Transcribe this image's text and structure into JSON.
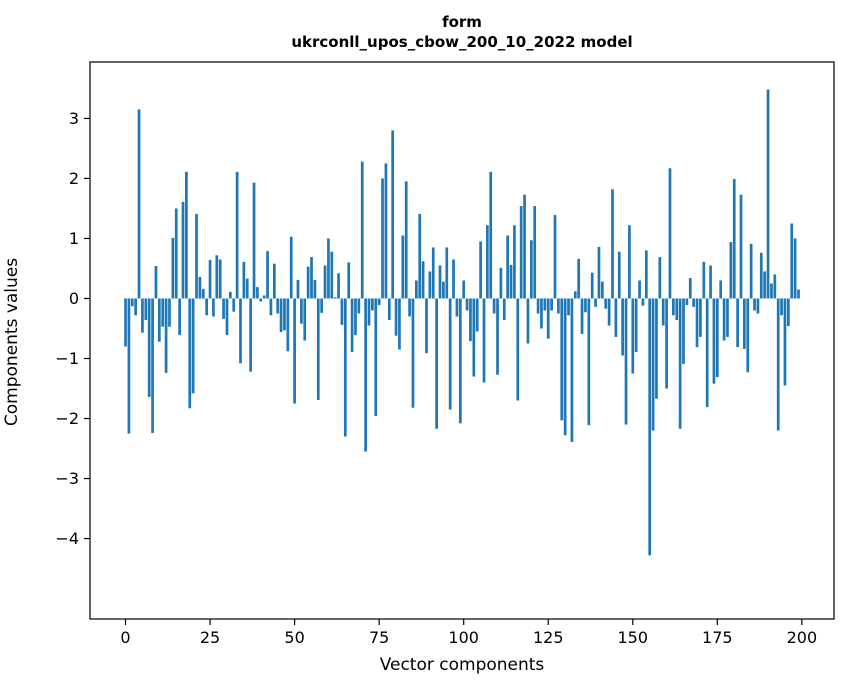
{
  "title": {
    "line1": "form",
    "line2": "ukrconll_upos_cbow_200_10_2022 model"
  },
  "chart_data": {
    "type": "bar",
    "title": "form\nukrconll_upos_cbow_200_10_2022 model",
    "xlabel": "Vector components",
    "ylabel": "Components values",
    "bar_color": "#1f77b4",
    "axis_color": "#000000",
    "background_color": "#ffffff",
    "grid": false,
    "legend": "none",
    "xlim": [
      -10.5,
      209.5
    ],
    "ylim": [
      -5.34,
      3.94
    ],
    "xticks": [
      0,
      25,
      50,
      75,
      100,
      125,
      150,
      175,
      200
    ],
    "xtick_labels": [
      "0",
      "25",
      "50",
      "75",
      "100",
      "125",
      "150",
      "175",
      "200"
    ],
    "yticks": [
      3,
      2,
      1,
      0,
      -1,
      -2,
      -3,
      -4
    ],
    "ytick_labels": [
      "3",
      "2",
      "1",
      "0",
      "−1",
      "−2",
      "−3",
      "−4"
    ],
    "x_start": 0,
    "values": [
      -0.8,
      -2.25,
      -0.13,
      -0.28,
      3.15,
      -0.57,
      -0.36,
      -1.64,
      -2.24,
      0.54,
      -0.72,
      -0.47,
      -1.24,
      -0.47,
      1.01,
      1.5,
      -0.61,
      1.61,
      2.11,
      -1.83,
      -1.58,
      1.41,
      0.36,
      0.16,
      -0.28,
      0.64,
      -0.3,
      0.72,
      0.65,
      -0.34,
      -0.61,
      0.11,
      -0.22,
      2.11,
      -1.08,
      0.61,
      0.33,
      -1.22,
      1.93,
      0.19,
      -0.05,
      0.05,
      0.79,
      -0.28,
      0.58,
      -0.25,
      -0.56,
      -0.53,
      -0.88,
      1.03,
      -1.75,
      0.31,
      -0.42,
      -0.7,
      0.53,
      0.69,
      0.31,
      -1.69,
      -0.24,
      0.55,
      1.0,
      0.78,
      0.02,
      0.42,
      -0.44,
      -2.3,
      0.6,
      -0.89,
      -0.61,
      -0.25,
      2.28,
      -2.55,
      -0.45,
      -0.2,
      -1.96,
      -0.11,
      2.0,
      2.25,
      -0.36,
      2.8,
      -0.62,
      -0.85,
      1.05,
      1.95,
      -0.3,
      -1.82,
      0.3,
      1.41,
      0.62,
      -0.91,
      0.45,
      0.85,
      -2.17,
      0.55,
      0.28,
      0.85,
      -1.85,
      0.65,
      -0.3,
      -2.08,
      0.3,
      -0.2,
      -0.71,
      -1.3,
      -0.55,
      0.95,
      -1.4,
      1.22,
      2.11,
      -0.25,
      -1.27,
      0.51,
      -0.36,
      1.05,
      0.56,
      1.22,
      -1.7,
      1.54,
      1.73,
      -0.75,
      0.97,
      1.54,
      -0.25,
      -0.5,
      -0.2,
      -0.67,
      -0.2,
      1.39,
      -0.25,
      -2.03,
      -2.28,
      -0.28,
      -2.39,
      0.12,
      0.66,
      -0.59,
      -0.23,
      -2.11,
      0.43,
      -0.14,
      0.86,
      0.28,
      -0.17,
      -0.45,
      1.82,
      -0.64,
      0.78,
      -0.95,
      -2.1,
      1.22,
      -1.25,
      -0.89,
      0.3,
      -0.12,
      0.8,
      -4.28,
      -2.2,
      -1.67,
      0.69,
      -0.45,
      -1.5,
      2.17,
      -0.28,
      -0.36,
      -2.17,
      -1.09,
      -0.11,
      0.34,
      -0.14,
      -0.81,
      -0.64,
      0.61,
      -1.81,
      0.55,
      -1.42,
      -1.31,
      0.3,
      -0.7,
      -0.64,
      0.94,
      1.99,
      -0.81,
      1.73,
      -0.84,
      -1.23,
      0.91,
      -0.2,
      -0.25,
      0.76,
      0.45,
      3.48,
      0.25,
      0.4,
      -2.2,
      -0.28,
      -1.45,
      -0.46,
      1.25,
      1.0,
      0.15
    ]
  }
}
